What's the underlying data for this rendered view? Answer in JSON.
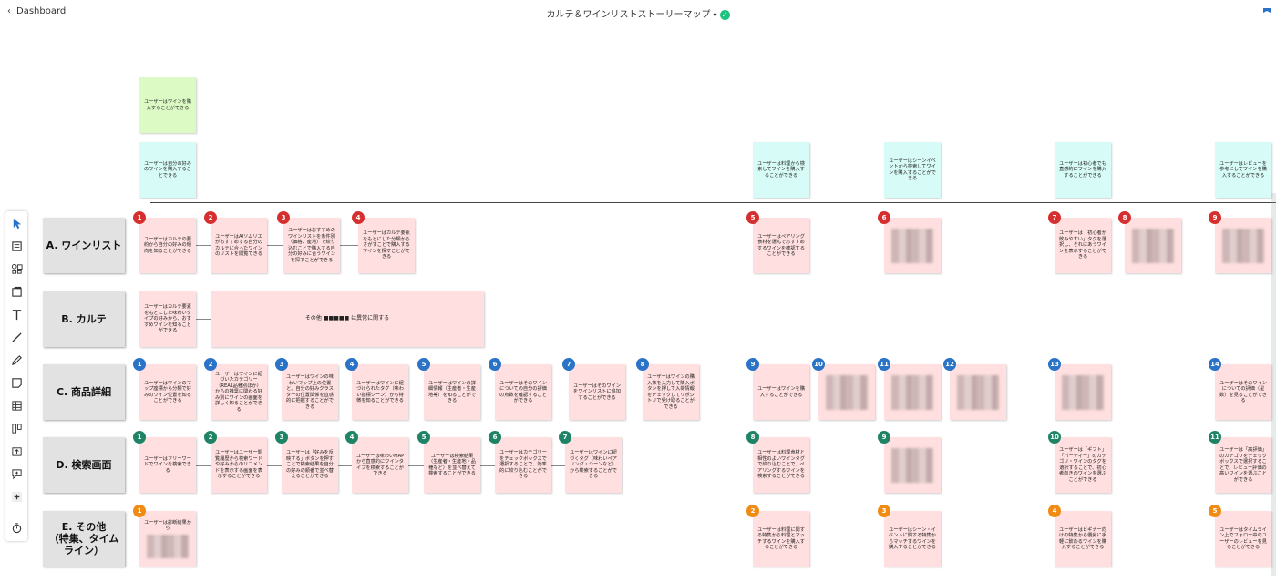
{
  "header": {
    "back_label": "Dashboard",
    "title": "カルテ＆ワインリストストーリーマップ",
    "status_color": "#1ec17d"
  },
  "toolbar": {
    "icons": [
      "pointer-icon",
      "document-icon",
      "shapes-icon",
      "frames-icon",
      "text-icon",
      "line-icon",
      "pen-icon",
      "sticky-note-icon",
      "table-icon",
      "column-icon",
      "upload-icon",
      "comment-icon",
      "plus-icon",
      "timer-icon"
    ]
  },
  "rows": [
    {
      "label": "A. ワインリスト"
    },
    {
      "label": "B. カルテ"
    },
    {
      "label": "C. 商品詳細"
    },
    {
      "label": "D. 検索画面"
    },
    {
      "label": "E. その他\n（特集、タイム\nライン）"
    }
  ],
  "epics": [
    {
      "text": "ユーザーはワインを購入することができる"
    }
  ],
  "activities": [
    {
      "text": "ユーザーは自分の好みのワインを購入することできる"
    },
    {
      "text": "ユーザーは料理から検索してワインを購入することができる"
    },
    {
      "text": "ユーザーはシーンイベントから検索してワインを購入することができる"
    },
    {
      "text": "ユーザーは初心者でも直感的にワインを購入することができる"
    },
    {
      "text": "ユーザーはレビューを参考にしてワインを購入することができる"
    }
  ],
  "stories": {
    "a": [
      {
        "num": "1",
        "text": "ユーザーはカルテの要約から自分の好みの傾向を知ることができる"
      },
      {
        "num": "2",
        "text": "ユーザーはAIソムリエがおすすめする自分のカルテに合ったワインのリストを閲覧できる"
      },
      {
        "num": "3",
        "text": "ユーザーはおすすめのワインリストを条件別（価格、産地）で絞り込むことで購入する自分の好みに合うワインを探すことができる"
      },
      {
        "num": "4",
        "text": "ユーザーはカルテ要素をもとにした分類からさがすことで購入するワインを探すことができる"
      },
      {
        "num": "5",
        "text": "ユーザーはペアリング食材を選んでおすすめするワインを確認することができる"
      },
      {
        "num": "6",
        "text": ""
      },
      {
        "num": "7",
        "text": "ユーザーは「初心者が飲みやすい」タグを選択し、それにあうワインを表示することができる"
      },
      {
        "num": "8",
        "text": ""
      },
      {
        "num": "9",
        "text": ""
      }
    ],
    "b_first": "ユーザーはカルテ要素をもとにした味わいタイプの好みから、おすすめワインを知ることができる",
    "b_wide": "その他 ■■■■■ は異常に関する",
    "c": [
      {
        "num": "1",
        "text": "ユーザーはワインのマップ座標から分類で好みのワイン位置を知ることができる"
      },
      {
        "num": "2",
        "text": "ユーザーはワインに紐づいたカテゴリー（REAL品種別ほか）からの推奨に関わる好み別にワインの画面を詳しく知ることができる"
      },
      {
        "num": "3",
        "text": "ユーザーはワインの味わいマップ上の位置と、自分の好みクラスターの位置関係を直感的に把握することができる"
      },
      {
        "num": "4",
        "text": "ユーザーはワインに紐づけられたタグ（味わい指標シーン）から特徴を知ることができる"
      },
      {
        "num": "5",
        "text": "ユーザーはワインの詳細情報（生産者・生産地等）を知ることができる"
      },
      {
        "num": "6",
        "text": "ユーザーはそのワインについての自分の評価の点数を確認することができる"
      },
      {
        "num": "7",
        "text": "ユーザーはそのワインをワインリストに追加することができる"
      },
      {
        "num": "8",
        "text": "ユーザーはワインの購入数を入力して購入ボタンを押して入荷情報をチェックしてリポジトリで受け取ることができる"
      },
      {
        "num": "9",
        "text": "ユーザーはワインを購入することができる"
      },
      {
        "num": "10",
        "text": ""
      },
      {
        "num": "11",
        "text": ""
      },
      {
        "num": "12",
        "text": ""
      },
      {
        "num": "13",
        "text": ""
      },
      {
        "num": "14",
        "text": "ユーザーはそのワインについての評価（星数）を見ることができる"
      }
    ],
    "d": [
      {
        "num": "1",
        "text": "ユーザーはフリーワードでワインを検索できる"
      },
      {
        "num": "2",
        "text": "ユーザーはユーザー閲覧履歴から検索ワードや好みからのリコメンドを表示する画面を表示することができる"
      },
      {
        "num": "3",
        "text": "ユーザーは「好みを反映する」ボタンを押すことで検索結果を自分の好みの順番で並べ替えることができる"
      },
      {
        "num": "4",
        "text": "ユーザーは味わいMAPから直感的にワインタイプを検索することができる"
      },
      {
        "num": "5",
        "text": "ユーザーは検索結果（生産者・生産地・品種など）を並べ替えて検索することができる"
      },
      {
        "num": "6",
        "text": "ユーザーはカテゴリーをチェックボックスで選択することで、効率的に絞り込むことができる"
      },
      {
        "num": "7",
        "text": "ユーザーはワインに紐づくタグ（味わいペアリング・シーンなど）から検索することができる"
      },
      {
        "num": "8",
        "text": "ユーザーは料理食材と相性のよいワインタグで絞り込むことで、ペアリングするワインを検索することができる"
      },
      {
        "num": "9",
        "text": ""
      },
      {
        "num": "10",
        "text": "ユーザーは「ギフト」「パーティー」のカテゴリ・ワインのタグを選択することで、初心者向きのワインを選ぶことができる"
      },
      {
        "num": "11",
        "text": "ユーザーは「高評価」のカテゴリをチェックボックスで選択することで、レビュー評価の高いワインを選ぶことができる"
      }
    ],
    "e": [
      {
        "num": "1",
        "text": "ユーザーは診断結果から"
      },
      {
        "num": "2",
        "text": "ユーザーは料理に関する特集から料理とマッチするワインを購入することができる"
      },
      {
        "num": "3",
        "text": "ユーザーはシーン・イベントに関する特集からマッチするワインを購入することができる"
      },
      {
        "num": "4",
        "text": "ユーザーはビギナー向けの特集から優劣に手軽に飲めるワインを購入することができる"
      },
      {
        "num": "5",
        "text": "ユーザーはタイムライン上でフォロー中のユーザーのレビューを見ることができる"
      }
    ]
  }
}
